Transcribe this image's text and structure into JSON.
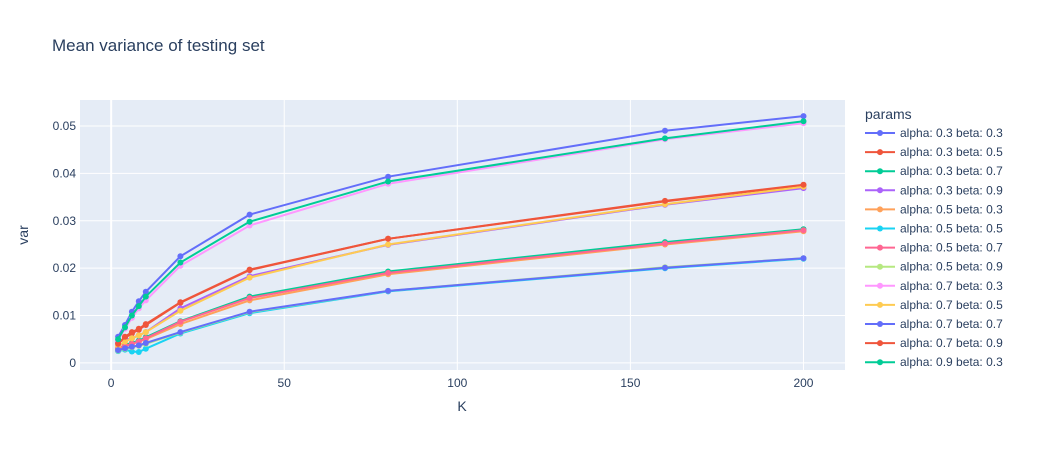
{
  "chart_data": {
    "type": "line",
    "title": "Mean variance of testing set",
    "xlabel": "K",
    "ylabel": "var",
    "xlim": [
      -9,
      212
    ],
    "ylim": [
      -0.0015,
      0.0555
    ],
    "xticks": [
      0,
      50,
      100,
      150,
      200
    ],
    "yticks": [
      0,
      0.01,
      0.02,
      0.03,
      0.04,
      0.05
    ],
    "yticklabels": [
      "0",
      "0.01",
      "0.02",
      "0.03",
      "0.04",
      "0.05"
    ],
    "grid": true,
    "legend_title": "params",
    "legend_position": "right",
    "x": [
      2,
      4,
      6,
      8,
      10,
      20,
      40,
      80,
      160,
      200
    ],
    "series": [
      {
        "name": "alpha: 0.3 beta: 0.3",
        "color": "#636efa",
        "values": [
          0.0055,
          0.008,
          0.0108,
          0.013,
          0.015,
          0.0225,
          0.0313,
          0.0393,
          0.049,
          0.0521
        ]
      },
      {
        "name": "alpha: 0.3 beta: 0.5",
        "color": "#ef553b",
        "values": [
          0.0042,
          0.0053,
          0.0062,
          0.007,
          0.008,
          0.0127,
          0.0196,
          0.0262,
          0.0341,
          0.0375
        ]
      },
      {
        "name": "alpha: 0.3 beta: 0.7",
        "color": "#00cc96",
        "values": [
          0.003,
          0.0038,
          0.0042,
          0.0047,
          0.0054,
          0.0088,
          0.014,
          0.0193,
          0.0255,
          0.0282
        ]
      },
      {
        "name": "alpha: 0.3 beta: 0.9",
        "color": "#ab63fa",
        "values": [
          0.0045,
          0.0048,
          0.0052,
          0.0058,
          0.0065,
          0.0115,
          0.0183,
          0.0249,
          0.0334,
          0.0369
        ]
      },
      {
        "name": "alpha: 0.5 beta: 0.3",
        "color": "#ffa15a",
        "values": [
          0.0029,
          0.0035,
          0.004,
          0.0045,
          0.005,
          0.0082,
          0.0132,
          0.0187,
          0.025,
          0.0278
        ]
      },
      {
        "name": "alpha: 0.5 beta: 0.5",
        "color": "#19d3f3",
        "values": [
          0.0025,
          0.0028,
          0.0024,
          0.0023,
          0.003,
          0.0062,
          0.0105,
          0.0151,
          0.02,
          0.022
        ]
      },
      {
        "name": "alpha: 0.5 beta: 0.7",
        "color": "#ff6692",
        "values": [
          0.0032,
          0.0036,
          0.004,
          0.0045,
          0.0052,
          0.0087,
          0.0137,
          0.019,
          0.0252,
          0.028
        ]
      },
      {
        "name": "alpha: 0.5 beta: 0.9",
        "color": "#b6e880",
        "values": [
          0.0026,
          0.003,
          0.0033,
          0.0036,
          0.004,
          0.0064,
          0.0107,
          0.0152,
          0.0202,
          0.0221
        ]
      },
      {
        "name": "alpha: 0.7 beta: 0.3",
        "color": "#ff97ff",
        "values": [
          0.0048,
          0.0072,
          0.0095,
          0.0115,
          0.0132,
          0.0205,
          0.029,
          0.0378,
          0.0472,
          0.0506
        ]
      },
      {
        "name": "alpha: 0.7 beta: 0.5",
        "color": "#fecb52",
        "values": [
          0.0036,
          0.0045,
          0.0052,
          0.0058,
          0.0065,
          0.011,
          0.018,
          0.025,
          0.0335,
          0.0372
        ]
      },
      {
        "name": "alpha: 0.7 beta: 0.7",
        "color": "#636efa",
        "values": [
          0.0027,
          0.0031,
          0.0034,
          0.0037,
          0.0042,
          0.0065,
          0.0108,
          0.0152,
          0.0201,
          0.0221
        ]
      },
      {
        "name": "alpha: 0.7 beta: 0.9",
        "color": "#ef553b",
        "values": [
          0.004,
          0.0055,
          0.0065,
          0.0072,
          0.0082,
          0.0128,
          0.0197,
          0.0262,
          0.0342,
          0.0376
        ]
      },
      {
        "name": "alpha: 0.9 beta: 0.3",
        "color": "#00cc96",
        "values": [
          0.005,
          0.0075,
          0.01,
          0.012,
          0.014,
          0.0212,
          0.0298,
          0.0383,
          0.0474,
          0.051
        ]
      }
    ]
  }
}
